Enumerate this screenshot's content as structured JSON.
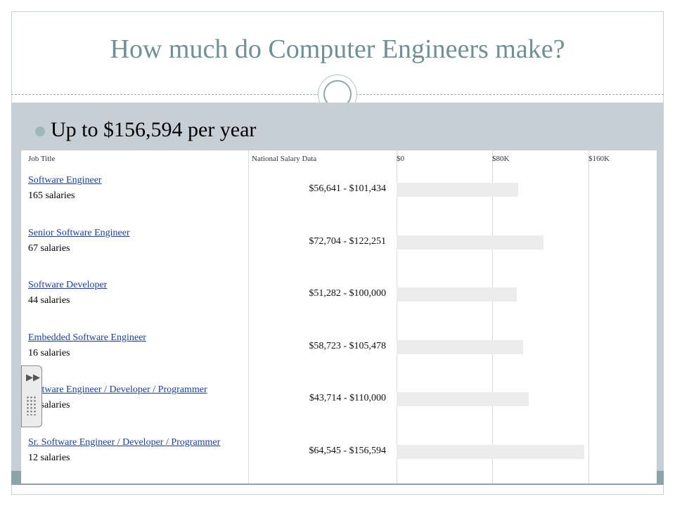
{
  "slide": {
    "title": "How much do Computer Engineers make?",
    "bullet": "Up to $156,594 per year"
  },
  "table": {
    "headers": {
      "job_title": "Job Title",
      "national_salary": "National Salary Data",
      "tick_0": "$0",
      "tick_80": "$80K",
      "tick_160": "$160K"
    },
    "axis_max": 160000,
    "rows": [
      {
        "title": "Software Engineer",
        "count": "165 salaries",
        "range": "$56,641 - $101,434",
        "low": 56641,
        "high": 101434
      },
      {
        "title": "Senior Software Engineer",
        "count": "67 salaries",
        "range": "$72,704 - $122,251",
        "low": 72704,
        "high": 122251
      },
      {
        "title": "Software Developer",
        "count": "44 salaries",
        "range": "$51,282 - $100,000",
        "low": 51282,
        "high": 100000
      },
      {
        "title": "Embedded Software Engineer",
        "count": "16 salaries",
        "range": "$58,723 - $105,478",
        "low": 58723,
        "high": 105478
      },
      {
        "title": "Software Engineer / Developer / Programmer",
        "count": "14 salaries",
        "range": "$43,714 - $110,000",
        "low": 43714,
        "high": 110000
      },
      {
        "title": "Sr. Software Engineer / Developer / Programmer",
        "count": "12 salaries",
        "range": "$64,545 - $156,594",
        "low": 64545,
        "high": 156594
      }
    ]
  },
  "colors": {
    "title": "#6f9194",
    "band": "#c5cfd5",
    "link": "#1a3fa6",
    "bar": "#ececec"
  },
  "icons": {
    "handle_arrow": "double-chevron-right-icon",
    "handle_grip": "grip-icon"
  }
}
